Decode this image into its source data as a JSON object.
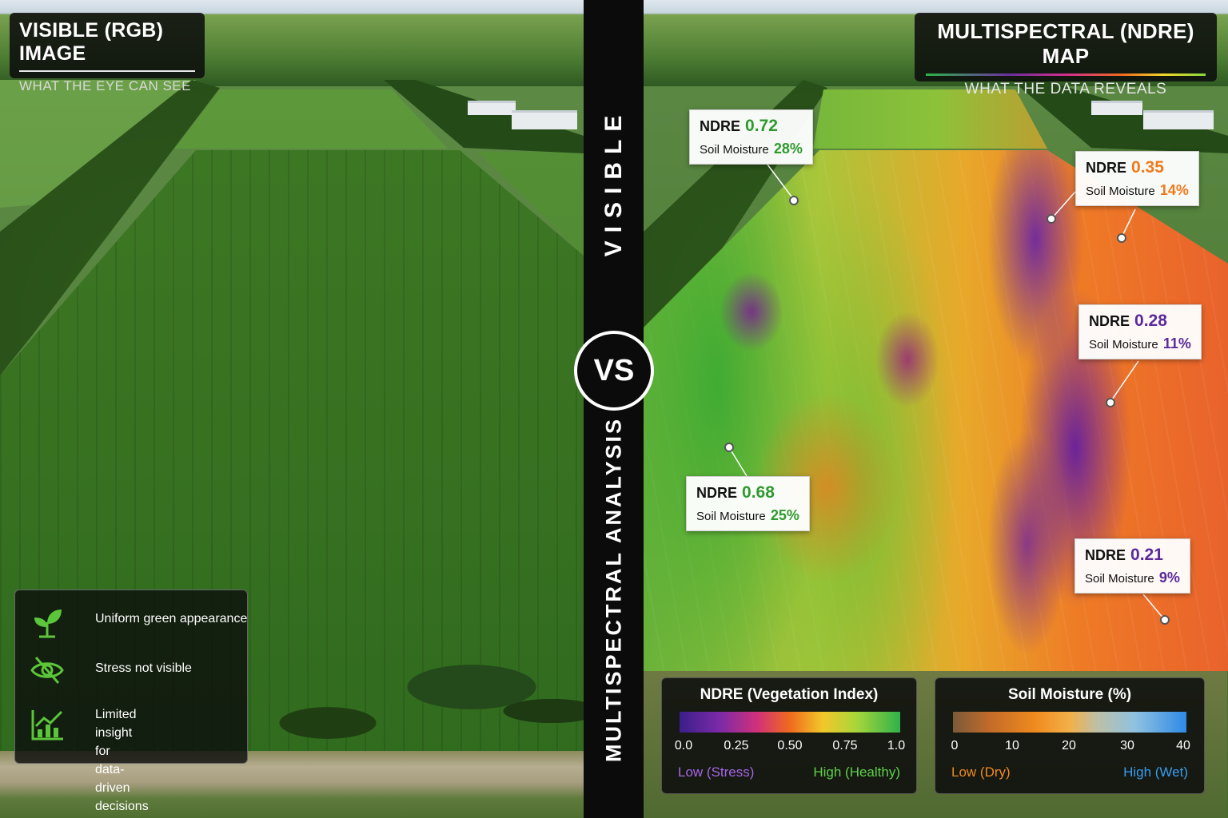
{
  "left_panel": {
    "title": "VISIBLE (RGB) IMAGE",
    "subtitle": "WHAT THE EYE CAN SEE",
    "info_items": [
      {
        "icon": "sprout-icon",
        "text": "Uniform green appearance"
      },
      {
        "icon": "eye-slash-icon",
        "text": "Stress not visible"
      },
      {
        "icon": "bar-chart-trend-icon",
        "text": "Limited insight for\ndata-driven decisions"
      }
    ]
  },
  "divider": {
    "top_label": "VISIBLE",
    "vs": "VS",
    "bottom_label": "MULTISPECTRAL ANALYSIS"
  },
  "right_panel": {
    "title": "MULTISPECTRAL (NDRE) MAP",
    "subtitle": "WHAT THE DATA REVEALS",
    "callouts": [
      {
        "ndre_label": "NDRE",
        "ndre_value": "0.72",
        "moisture_label": "Soil Moisture",
        "moisture_value": "28%",
        "color": "#2e9a2e"
      },
      {
        "ndre_label": "NDRE",
        "ndre_value": "0.35",
        "moisture_label": "Soil Moisture",
        "moisture_value": "14%",
        "color": "#f07a1a"
      },
      {
        "ndre_label": "NDRE",
        "ndre_value": "0.28",
        "moisture_label": "Soil Moisture",
        "moisture_value": "11%",
        "color": "#5a2a9a"
      },
      {
        "ndre_label": "NDRE",
        "ndre_value": "0.68",
        "moisture_label": "Soil Moisture",
        "moisture_value": "25%",
        "color": "#2e9a2e"
      },
      {
        "ndre_label": "NDRE",
        "ndre_value": "0.21",
        "moisture_label": "Soil Moisture",
        "moisture_value": "9%",
        "color": "#5a2a9a"
      }
    ],
    "ndre_legend": {
      "title": "NDRE (Vegetation Index)",
      "ticks": [
        "0.0",
        "0.25",
        "0.50",
        "0.75",
        "1.0"
      ],
      "low": "Low (Stress)",
      "high": "High (Healthy)",
      "low_color": "#a565e6",
      "high_color": "#5fd14a"
    },
    "moisture_legend": {
      "title": "Soil Moisture (%)",
      "ticks": [
        "0",
        "10",
        "20",
        "30",
        "40"
      ],
      "low": "Low (Dry)",
      "high": "High (Wet)",
      "low_color": "#f08a1e",
      "high_color": "#3a9cf0"
    }
  }
}
